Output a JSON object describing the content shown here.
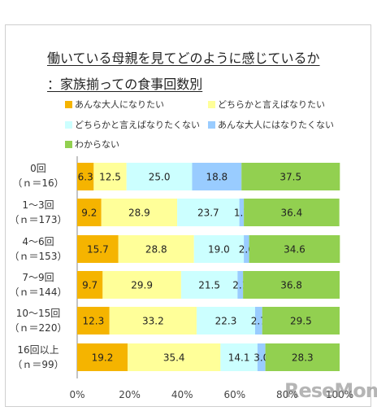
{
  "title_line1": "働いている母親を見てどのように感じているか",
  "title_line2": "：家族揃っての食事回数別",
  "legend": [
    {
      "label": "あんな大人になりたい",
      "color": "#f5b400"
    },
    {
      "label": "どちらかと言えばなりたい",
      "color": "#ffff99"
    },
    {
      "label": "どちらかと言えばなりたくない",
      "color": "#ccffff"
    },
    {
      "label": "あんな大人にはなりたくない",
      "color": "#99ccff"
    },
    {
      "label": "わからない",
      "color": "#92d050"
    }
  ],
  "rows": [
    {
      "label": "0回",
      "n": "（ｎ＝16）"
    },
    {
      "label": "1～3回",
      "n": "（ｎ＝173）"
    },
    {
      "label": "4～6回",
      "n": "（ｎ＝153）"
    },
    {
      "label": "7～9回",
      "n": "（ｎ＝144）"
    },
    {
      "label": "10～15回",
      "n": "（ｎ＝220）"
    },
    {
      "label": "16回以上",
      "n": "（ｎ＝99）"
    }
  ],
  "x_ticks": [
    "0%",
    "20%",
    "40%",
    "60%",
    "80%",
    "100%"
  ],
  "watermark": "ReseMom",
  "chart_data": {
    "type": "bar",
    "orientation": "horizontal",
    "stacked": true,
    "title": "働いている母親を見てどのように感じているか：家族揃っての食事回数別",
    "categories": [
      "0回（ｎ＝16）",
      "1～3回（ｎ＝173）",
      "4～6回（ｎ＝153）",
      "7～9回（ｎ＝144）",
      "10～15回（ｎ＝220）",
      "16回以上（ｎ＝99）"
    ],
    "series": [
      {
        "name": "あんな大人になりたい",
        "values": [
          6.3,
          9.2,
          15.7,
          9.7,
          12.3,
          19.2
        ]
      },
      {
        "name": "どちらかと言えばなりたい",
        "values": [
          12.5,
          28.9,
          28.8,
          29.9,
          33.2,
          35.4
        ]
      },
      {
        "name": "どちらかと言えばなりたくない",
        "values": [
          25.0,
          23.7,
          19.0,
          21.5,
          22.3,
          14.1
        ]
      },
      {
        "name": "あんな大人にはなりたくない",
        "values": [
          18.8,
          1.7,
          2.0,
          2.1,
          2.7,
          3.0
        ]
      },
      {
        "name": "わからない",
        "values": [
          37.5,
          36.4,
          34.6,
          36.8,
          29.5,
          28.3
        ]
      }
    ],
    "xlim": [
      0,
      100
    ],
    "grid": false,
    "legend_position": "top"
  }
}
